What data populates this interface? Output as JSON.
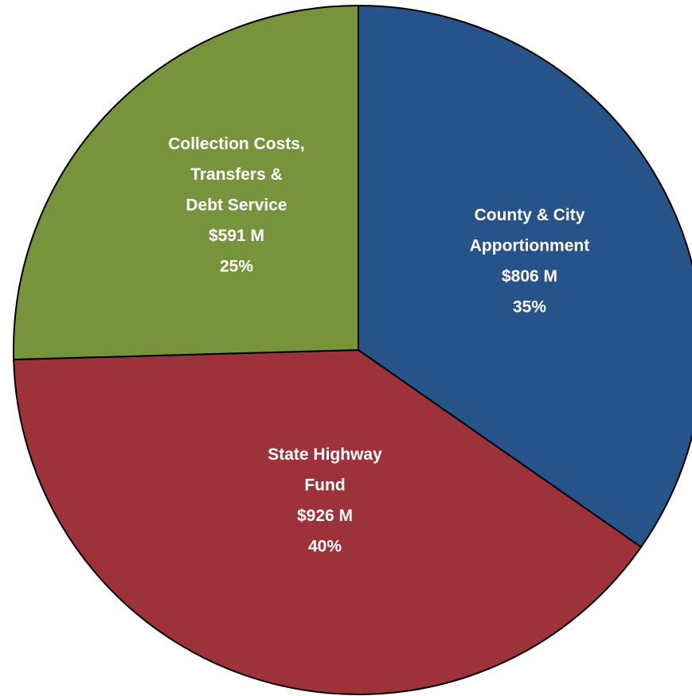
{
  "chart_data": {
    "type": "pie",
    "categories": [
      [
        "County & City",
        "Apportionment"
      ],
      [
        "State Highway",
        "Fund"
      ],
      [
        "Collection Costs,",
        "Transfers &",
        "Debt Service"
      ]
    ],
    "values": [
      806,
      926,
      591
    ],
    "value_labels": [
      "$806 M",
      "$926 M",
      "$591 M"
    ],
    "percents": [
      35,
      40,
      25
    ],
    "percent_labels": [
      "35%",
      "40%",
      "25%"
    ],
    "colors": [
      "#26538a",
      "#9e323a",
      "#77933c"
    ]
  }
}
